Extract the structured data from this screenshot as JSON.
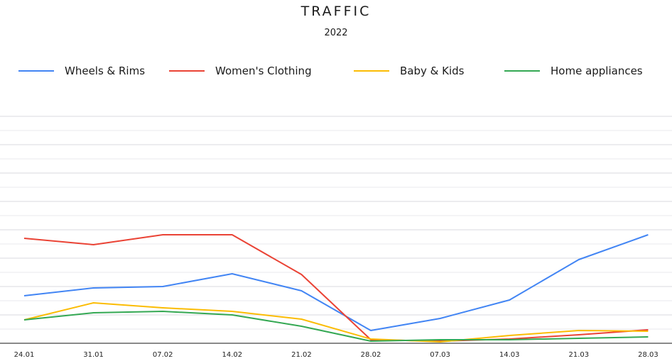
{
  "chart": {
    "title": "TRAFFIC",
    "subtitle": "2022"
  },
  "legend": [
    {
      "label": "Wheels & Rims",
      "color": "#4285f4"
    },
    {
      "label": "Women's Clothing",
      "color": "#ea4335"
    },
    {
      "label": "Baby & Kids",
      "color": "#fbbc04"
    },
    {
      "label": "Home appliances",
      "color": "#34a853"
    }
  ],
  "chart_data": {
    "type": "line",
    "title": "TRAFFIC",
    "subtitle": "2022",
    "xlabel": "",
    "ylabel": "",
    "categories": [
      "24.01",
      "31.01",
      "07.02",
      "14.02",
      "21.02",
      "28.02",
      "07.03",
      "14.03",
      "21.03",
      "28.03"
    ],
    "series": [
      {
        "name": "Wheels & Rims",
        "color": "#4285f4",
        "values": [
          3.35,
          3.9,
          4.0,
          4.9,
          3.7,
          0.9,
          1.75,
          3.05,
          5.9,
          7.65
        ]
      },
      {
        "name": "Women's Clothing",
        "color": "#ea4335",
        "values": [
          7.4,
          6.95,
          7.65,
          7.65,
          4.85,
          0.25,
          0.15,
          0.3,
          0.6,
          0.95
        ]
      },
      {
        "name": "Baby & Kids",
        "color": "#fbbc04",
        "values": [
          1.65,
          2.85,
          2.5,
          2.25,
          1.7,
          0.3,
          0.1,
          0.55,
          0.9,
          0.85
        ]
      },
      {
        "name": "Home appliances",
        "color": "#34a853",
        "values": [
          1.65,
          2.15,
          2.25,
          2.0,
          1.2,
          0.15,
          0.25,
          0.25,
          0.35,
          0.45
        ]
      }
    ],
    "ylim": [
      0,
      16
    ],
    "grid": true,
    "legend_position": "top",
    "y_tick_labels_visible": false
  }
}
